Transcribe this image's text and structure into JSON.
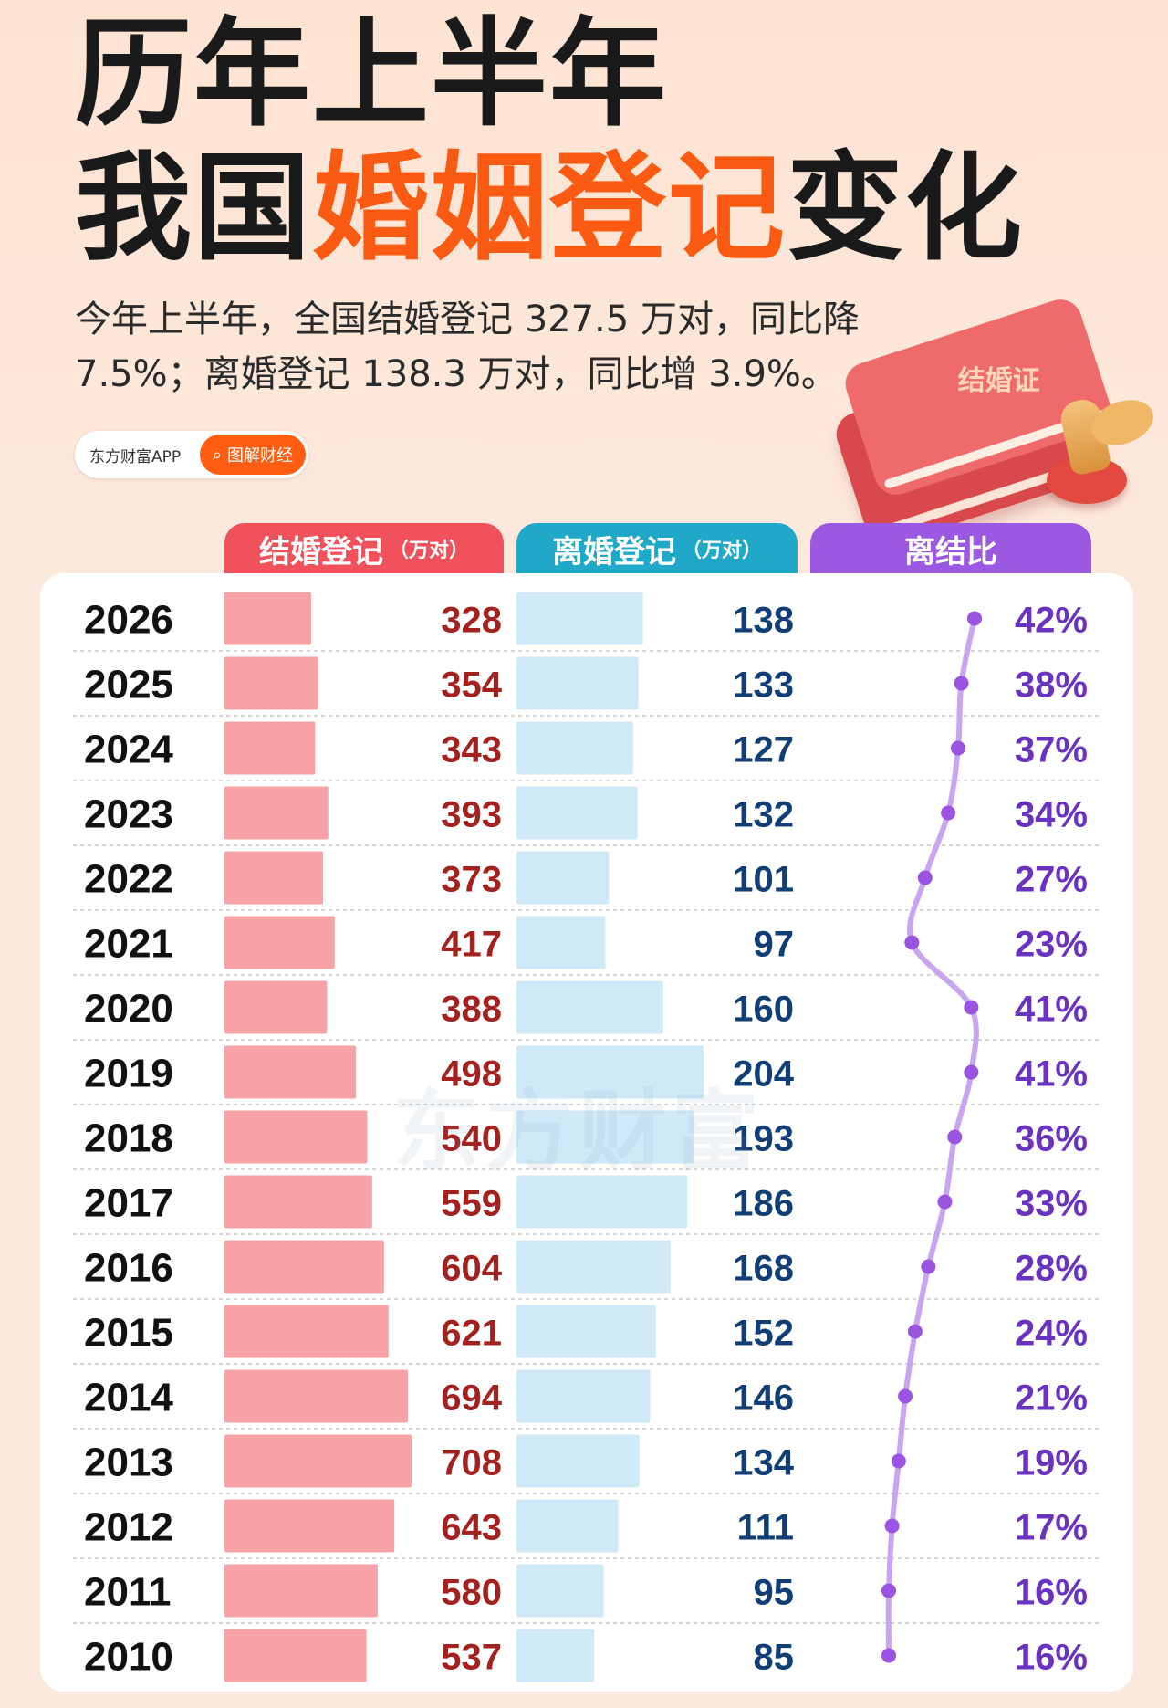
{
  "title": {
    "line1": "历年上半年",
    "line2_pre": "我国",
    "line2_highlight": "婚姻登记",
    "line2_post": "变化"
  },
  "subtitle": "今年上半年，全国结婚登记 327.5 万对，同比降 7.5%；离婚登记 138.3 万对，同比增 3.9%。",
  "source": {
    "name": "东方财富APP",
    "tag": "图解财经",
    "search_icon": "search-icon"
  },
  "illustration": {
    "label": "结婚证",
    "icons": [
      "marriage-certificate-icon",
      "seal-stamp-icon"
    ]
  },
  "watermark": "东方财富",
  "headers": {
    "marriage": "结婚登记",
    "marriage_unit": "（万对）",
    "divorce": "离婚登记",
    "divorce_unit": "（万对）",
    "ratio": "离结比"
  },
  "colors": {
    "highlight": "#fb5a12",
    "marriage_header": "#f0515b",
    "marriage_bar": "#f6a2a6",
    "marriage_text": "#a3211e",
    "divorce_header": "#1fa8c7",
    "divorce_bar": "#d0e9f6",
    "divorce_text": "#113e74",
    "ratio_header": "#9b58e0",
    "ratio_line": "#c8a5ef",
    "ratio_dot": "#9a54e1",
    "ratio_text": "#6a32c0"
  },
  "chart_data": {
    "type": "table",
    "categories": [
      "2026",
      "2025",
      "2024",
      "2023",
      "2022",
      "2021",
      "2020",
      "2019",
      "2018",
      "2017",
      "2016",
      "2015",
      "2014",
      "2013",
      "2012",
      "2011",
      "2010"
    ],
    "series": [
      {
        "name": "结婚登记（万对）",
        "values": [
          328,
          354,
          343,
          393,
          373,
          417,
          388,
          498,
          540,
          559,
          604,
          621,
          694,
          708,
          643,
          580,
          537
        ]
      },
      {
        "name": "离婚登记（万对）",
        "values": [
          138,
          133,
          127,
          132,
          101,
          97,
          160,
          204,
          193,
          186,
          168,
          152,
          146,
          134,
          111,
          95,
          85
        ]
      },
      {
        "name": "离结比",
        "values": [
          42,
          38,
          37,
          34,
          27,
          23,
          41,
          41,
          36,
          33,
          28,
          24,
          21,
          19,
          17,
          16,
          16
        ]
      }
    ],
    "ratio_labels": [
      "42%",
      "38%",
      "37%",
      "34%",
      "27%",
      "23%",
      "41%",
      "41%",
      "36%",
      "33%",
      "28%",
      "24%",
      "21%",
      "19%",
      "17%",
      "16%",
      "16%"
    ]
  }
}
